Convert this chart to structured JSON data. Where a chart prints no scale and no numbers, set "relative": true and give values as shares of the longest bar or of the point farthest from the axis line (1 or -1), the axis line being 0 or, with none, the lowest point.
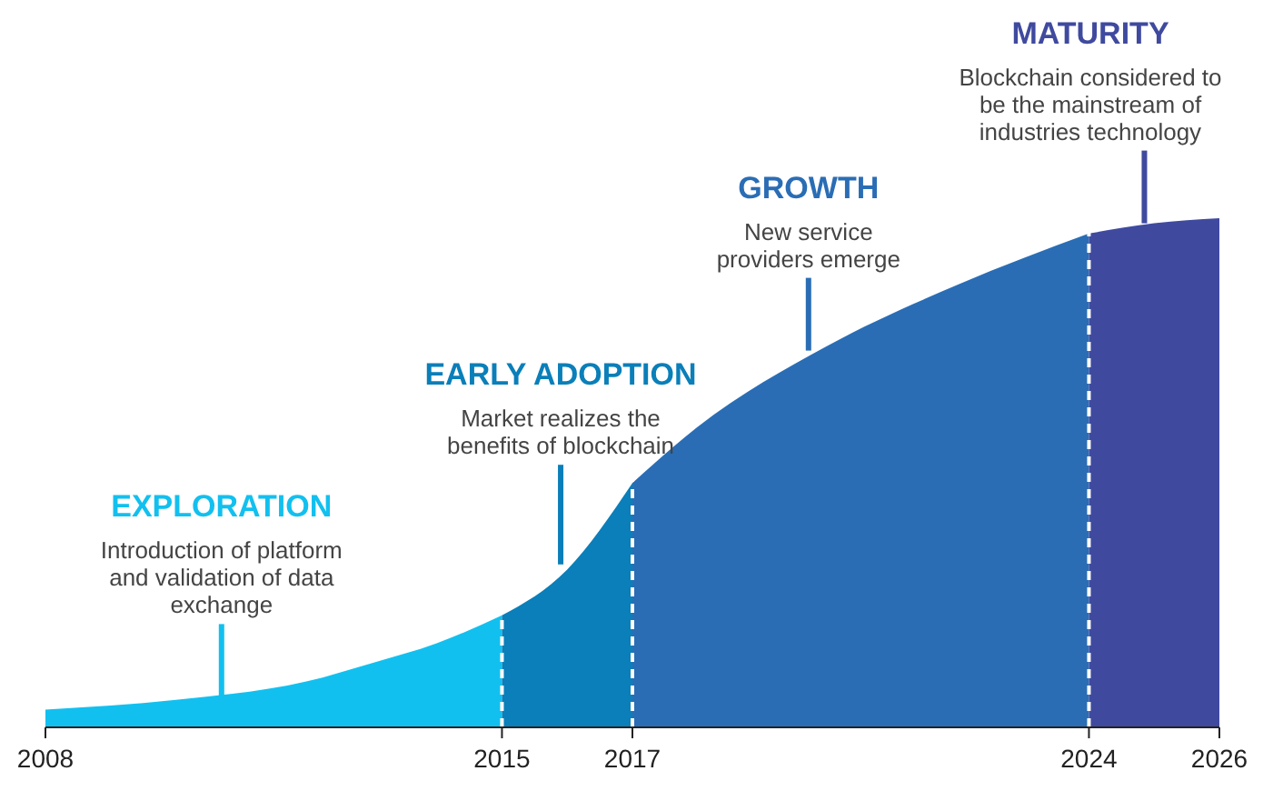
{
  "chart_data": {
    "type": "area",
    "relative": true,
    "xlim": [
      2008,
      2026
    ],
    "xticks": [
      2008,
      2015,
      2017,
      2024,
      2026
    ],
    "series": [
      {
        "name": "EXPLORATION",
        "color": "#12c0ef",
        "x": [
          2008,
          2010,
          2012,
          2013,
          2014,
          2015
        ],
        "values": [
          0.035,
          0.054,
          0.09,
          0.126,
          0.165,
          0.22
        ]
      },
      {
        "name": "EARLY ADOPTION",
        "color": "#0a7fb9",
        "x": [
          2015,
          2016,
          2017
        ],
        "values": [
          0.22,
          0.31,
          0.48
        ]
      },
      {
        "name": "GROWTH",
        "color": "#2a6db5",
        "x": [
          2017,
          2018,
          2020,
          2022,
          2024
        ],
        "values": [
          0.48,
          0.59,
          0.75,
          0.87,
          0.97
        ]
      },
      {
        "name": "MATURITY",
        "color": "#3f4a9f",
        "x": [
          2024,
          2025,
          2026
        ],
        "values": [
          0.97,
          0.99,
          1
        ]
      }
    ],
    "annotations": [
      {
        "text": "Introduction of platform\nand validation of data\nexchange",
        "x": 2010.7,
        "y": 0.06
      },
      {
        "text": "Market realizes the\nbenefits of blockchain",
        "x": 2015.9,
        "y": 0.32
      },
      {
        "text": "New service\nproviders emerge",
        "x": 2019.7,
        "y": 0.74
      },
      {
        "text": "Blockchain considered to\nbe the mainstream of\nindustries technology",
        "x": 2024.85,
        "y": 0.99
      }
    ],
    "ref_lines": [
      {
        "axis": "x",
        "value": 2015,
        "color": "#ffffff",
        "line_style": "dashed"
      },
      {
        "axis": "x",
        "value": 2017,
        "color": "#ffffff",
        "line_style": "dashed"
      },
      {
        "axis": "x",
        "value": 2024,
        "color": "#ffffff",
        "line_style": "dashed"
      }
    ]
  }
}
